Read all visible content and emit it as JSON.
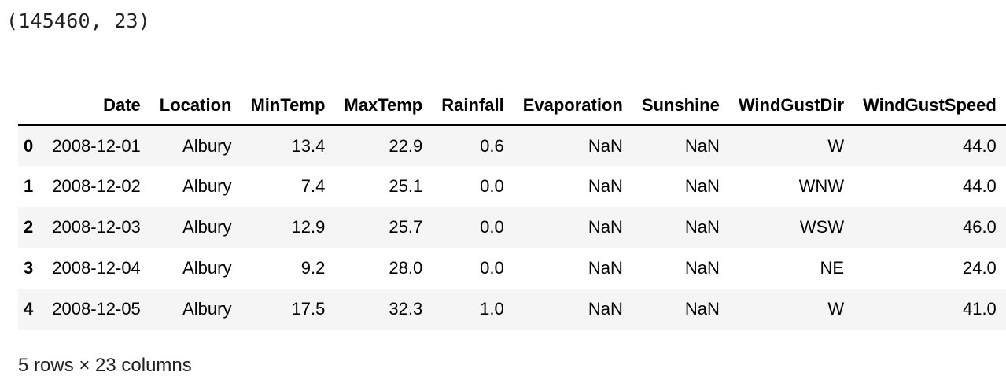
{
  "shape_output": "(145460, 23)",
  "dataframe": {
    "columns": [
      "",
      "Date",
      "Location",
      "MinTemp",
      "MaxTemp",
      "Rainfall",
      "Evaporation",
      "Sunshine",
      "WindGustDir",
      "WindGustSpeed"
    ],
    "rows": [
      {
        "index": "0",
        "cells": [
          "2008-12-01",
          "Albury",
          "13.4",
          "22.9",
          "0.6",
          "NaN",
          "NaN",
          "W",
          "44.0"
        ]
      },
      {
        "index": "1",
        "cells": [
          "2008-12-02",
          "Albury",
          "7.4",
          "25.1",
          "0.0",
          "NaN",
          "NaN",
          "WNW",
          "44.0"
        ]
      },
      {
        "index": "2",
        "cells": [
          "2008-12-03",
          "Albury",
          "12.9",
          "25.7",
          "0.0",
          "NaN",
          "NaN",
          "WSW",
          "46.0"
        ]
      },
      {
        "index": "3",
        "cells": [
          "2008-12-04",
          "Albury",
          "9.2",
          "28.0",
          "0.0",
          "NaN",
          "NaN",
          "NE",
          "24.0"
        ]
      },
      {
        "index": "4",
        "cells": [
          "2008-12-05",
          "Albury",
          "17.5",
          "32.3",
          "1.0",
          "NaN",
          "NaN",
          "W",
          "41.0"
        ]
      }
    ]
  },
  "dims_note": "5 rows × 23 columns"
}
